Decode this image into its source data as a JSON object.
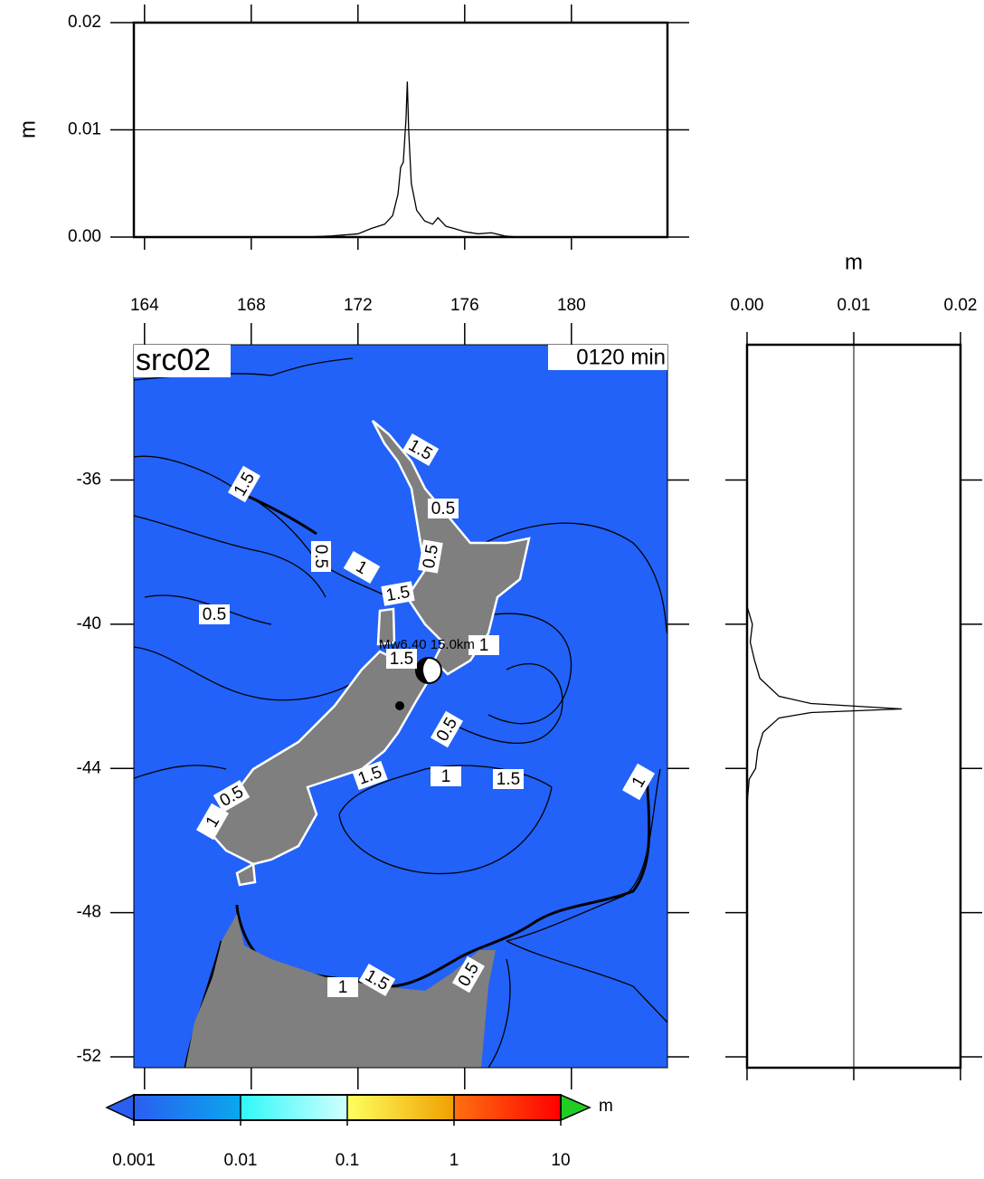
{
  "chart_data": [
    {
      "type": "line",
      "y_label": "m",
      "color": "#000000",
      "x": [
        163.6,
        170,
        171,
        172,
        172.5,
        173,
        173.3,
        173.5,
        173.6,
        173.7,
        173.8,
        173.85,
        173.9,
        174.0,
        174.2,
        174.5,
        174.8,
        175,
        175.3,
        175.6,
        176,
        176.5,
        177,
        177.5,
        178,
        183.6
      ],
      "values": [
        0,
        0,
        0.0001,
        0.0003,
        0.0008,
        0.0012,
        0.002,
        0.004,
        0.0065,
        0.007,
        0.011,
        0.0145,
        0.01,
        0.005,
        0.0025,
        0.0015,
        0.0012,
        0.0018,
        0.001,
        0.0008,
        0.0005,
        0.0003,
        0.0004,
        0.0001,
        0,
        0
      ],
      "xlim": [
        163.6,
        183.6
      ],
      "ylim": [
        0,
        0.02
      ],
      "yticks": [
        {
          "value": 0,
          "label": "0.00"
        },
        0.01,
        0.02
      ],
      "grid": true
    },
    {
      "type": "map",
      "title": "src02",
      "time_label": "0120 min",
      "event_label": "Mw6.40  15.0km",
      "xlim": [
        163.6,
        183.6
      ],
      "ylim": [
        -52.3,
        -32.25
      ],
      "xticks": [
        164,
        168,
        172,
        176,
        180
      ],
      "yticks": [
        -36,
        -40,
        -44,
        -48,
        -52
      ],
      "contour_labels": [
        1.5,
        0.5,
        1,
        0.5,
        1.5,
        0.5,
        0.5,
        1.5,
        1.5,
        1,
        0.5,
        1.5,
        1,
        1.5,
        1,
        0.5,
        1,
        1.5,
        1,
        0.5
      ]
    },
    {
      "type": "line",
      "orientation": "vertical",
      "x_label": "m",
      "color": "#000000",
      "x": [
        -32.25,
        -39.5,
        -40,
        -40.5,
        -41,
        -41.5,
        -42,
        -42.2,
        -42.35,
        -42.45,
        -42.6,
        -43,
        -43.5,
        -44,
        -44.3,
        -45,
        -52.3
      ],
      "values": [
        0,
        0,
        0.0005,
        0.0003,
        0.0007,
        0.0012,
        0.003,
        0.006,
        0.0145,
        0.006,
        0.003,
        0.0015,
        0.001,
        0.0008,
        0.0002,
        0,
        0
      ],
      "xlim": [
        0,
        0.02
      ],
      "ylim": [
        -52.3,
        -32.25
      ],
      "xticks": [
        {
          "value": 0,
          "label": "0.00"
        },
        0.01,
        0.02
      ],
      "grid": true
    },
    {
      "type": "colorbar",
      "log": true,
      "unit": "m",
      "xlim": [
        0.001,
        10
      ],
      "xticks": [
        0.001,
        0.01,
        0.1,
        1,
        10
      ],
      "colors": [
        "#2a5ef0",
        "#0aa8ee",
        "#30f8f8",
        "#d0ffff",
        "#ffff60",
        "#f0a000",
        "#ff7010",
        "#ff0000"
      ],
      "under_color": "#2a5ef0",
      "over_color": "#22cc22"
    }
  ]
}
